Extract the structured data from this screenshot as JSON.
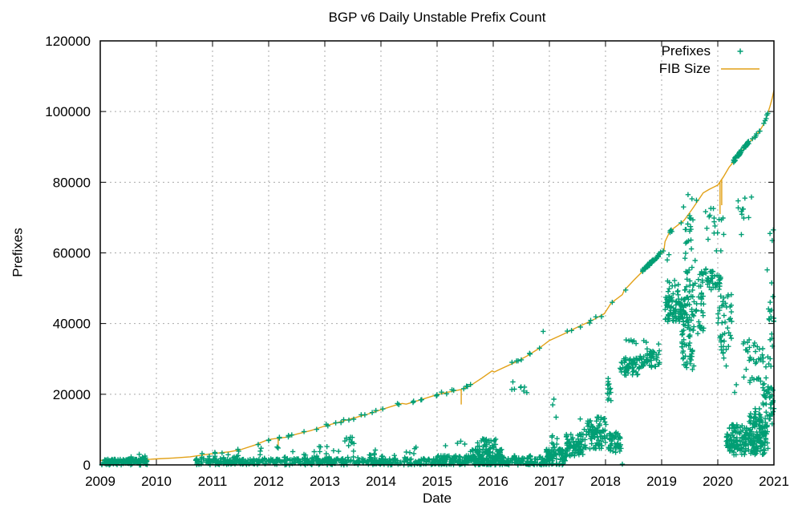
{
  "chart_data": {
    "type": "scatter",
    "title": "BGP v6 Daily Unstable Prefix Count",
    "xlabel": "Date",
    "ylabel": "Prefixes",
    "xlim": [
      2009,
      2021
    ],
    "ylim": [
      0,
      120000
    ],
    "xticks": [
      2009,
      2010,
      2011,
      2012,
      2013,
      2014,
      2015,
      2016,
      2017,
      2018,
      2019,
      2020,
      2021
    ],
    "yticks": [
      0,
      20000,
      40000,
      60000,
      80000,
      100000,
      120000
    ],
    "grid": true,
    "legend_position": "top-right-inside",
    "legend": [
      {
        "label": "Prefixes",
        "marker": "plus",
        "color": "#019E74"
      },
      {
        "label": "FIB Size",
        "marker": "line",
        "color": "#E2A117"
      }
    ],
    "colors": {
      "prefixes_points": "#019E74",
      "fib_line": "#E2A117",
      "grid": "#A9A9A9",
      "border": "#000000",
      "text": "#000000",
      "background": "#FFFFFF"
    },
    "fib_line": [
      [
        2009.0,
        1300
      ],
      [
        2009.3,
        1350
      ],
      [
        2009.6,
        1500
      ],
      [
        2009.9,
        1600
      ],
      [
        2010.0,
        1700
      ],
      [
        2010.3,
        1950
      ],
      [
        2010.6,
        2300
      ],
      [
        2011.0,
        3200
      ],
      [
        2011.3,
        3700
      ],
      [
        2011.5,
        4300
      ],
      [
        2011.75,
        5600
      ],
      [
        2011.95,
        6900
      ],
      [
        2012.05,
        7300
      ],
      [
        2012.3,
        7800
      ],
      [
        2012.5,
        8700
      ],
      [
        2012.75,
        9700
      ],
      [
        2013.0,
        11000
      ],
      [
        2013.25,
        12100
      ],
      [
        2013.5,
        13200
      ],
      [
        2013.75,
        14300
      ],
      [
        2014.0,
        15600
      ],
      [
        2014.3,
        17100
      ],
      [
        2014.38,
        17400
      ],
      [
        2014.45,
        17200
      ],
      [
        2014.7,
        18400
      ],
      [
        2015.0,
        19900
      ],
      [
        2015.2,
        20600
      ],
      [
        2015.42,
        21300
      ],
      [
        2015.6,
        22500
      ],
      [
        2015.8,
        24600
      ],
      [
        2015.98,
        26600
      ],
      [
        2016.02,
        26300
      ],
      [
        2016.1,
        26900
      ],
      [
        2016.4,
        29100
      ],
      [
        2016.6,
        30800
      ],
      [
        2016.8,
        32800
      ],
      [
        2017.0,
        35200
      ],
      [
        2017.25,
        37000
      ],
      [
        2017.5,
        39000
      ],
      [
        2017.75,
        40800
      ],
      [
        2017.98,
        42800
      ],
      [
        2018.02,
        43800
      ],
      [
        2018.1,
        45800
      ],
      [
        2018.3,
        48200
      ],
      [
        2018.33,
        49300
      ],
      [
        2018.5,
        52200
      ],
      [
        2018.7,
        55400
      ],
      [
        2018.9,
        58300
      ],
      [
        2019.0,
        60000
      ],
      [
        2019.04,
        60600
      ],
      [
        2019.06,
        63200
      ],
      [
        2019.15,
        66200
      ],
      [
        2019.3,
        68000
      ],
      [
        2019.4,
        69200
      ],
      [
        2019.55,
        72500
      ],
      [
        2019.74,
        77000
      ],
      [
        2019.85,
        78000
      ],
      [
        2020.0,
        79200
      ],
      [
        2020.1,
        81500
      ],
      [
        2020.2,
        84200
      ],
      [
        2020.35,
        87200
      ],
      [
        2020.5,
        90200
      ],
      [
        2020.65,
        92800
      ],
      [
        2020.75,
        94600
      ],
      [
        2020.82,
        96500
      ],
      [
        2020.88,
        99000
      ],
      [
        2020.93,
        101500
      ],
      [
        2020.97,
        103800
      ],
      [
        2021.0,
        106000
      ]
    ],
    "fib_down_spikes": [
      [
        2012.17,
        7500,
        4600
      ],
      [
        2015.43,
        21300,
        17100
      ],
      [
        2020.04,
        80000,
        71000
      ],
      [
        2020.07,
        80700,
        73500
      ]
    ],
    "scatter_seed": 7,
    "scatter_points": [
      [
        2009.55,
        2300
      ],
      [
        2016.35,
        23500
      ],
      [
        2016.89,
        37800
      ],
      [
        2017.06,
        17000
      ],
      [
        2017.08,
        18600
      ],
      [
        2017.12,
        13500
      ],
      [
        2017.55,
        13000
      ],
      [
        2018.3,
        200
      ],
      [
        2018.12,
        46000
      ],
      [
        2018.36,
        49500
      ],
      [
        2011.85,
        3900
      ],
      [
        2012.9,
        5200
      ],
      [
        2013.9,
        4200
      ],
      [
        2014.6,
        4600
      ],
      [
        2019.1,
        58000
      ],
      [
        2019.13,
        59500
      ],
      [
        2019.39,
        73000
      ],
      [
        2019.47,
        76500
      ],
      [
        2019.5,
        70500
      ],
      [
        2019.54,
        75300
      ],
      [
        2019.62,
        74900
      ],
      [
        2020.1,
        33500
      ],
      [
        2020.15,
        28000
      ],
      [
        2020.3,
        20500
      ],
      [
        2020.33,
        22700
      ],
      [
        2020.42,
        65200
      ],
      [
        2020.55,
        70000
      ],
      [
        2020.6,
        75800
      ],
      [
        2020.88,
        55200
      ],
      [
        2020.93,
        65500
      ],
      [
        2020.96,
        51500
      ],
      [
        2020.97,
        63500
      ],
      [
        2020.99,
        66500
      ]
    ],
    "scatter_clusters": [
      [
        2009.02,
        2009.85,
        0,
        1600,
        140
      ],
      [
        2009.68,
        2009.82,
        1600,
        3000,
        8
      ],
      [
        2010.7,
        2015.0,
        0,
        1800,
        430
      ],
      [
        2010.75,
        2015.0,
        1800,
        3300,
        40
      ],
      [
        2011.0,
        2015.0,
        3300,
        5200,
        16
      ],
      [
        2013.33,
        2013.52,
        5200,
        7900,
        9
      ],
      [
        2015.0,
        2016.92,
        0,
        2600,
        300
      ],
      [
        2015.55,
        2016.2,
        2600,
        4500,
        45
      ],
      [
        2015.72,
        2016.05,
        4500,
        7800,
        26
      ],
      [
        2015.15,
        2015.5,
        4800,
        6800,
        4
      ],
      [
        2016.3,
        2016.62,
        19500,
        22500,
        7
      ],
      [
        2016.92,
        2017.3,
        0,
        4500,
        90
      ],
      [
        2017.04,
        2017.14,
        4500,
        9500,
        8
      ],
      [
        2017.3,
        2017.62,
        2500,
        9000,
        75
      ],
      [
        2017.62,
        2018.05,
        4500,
        12500,
        85
      ],
      [
        2017.85,
        2018.0,
        12500,
        13800,
        7
      ],
      [
        2018.05,
        2018.28,
        3500,
        9500,
        45
      ],
      [
        2018.0,
        2018.1,
        17800,
        24500,
        14
      ],
      [
        2018.26,
        2018.6,
        25300,
        30500,
        60
      ],
      [
        2018.6,
        2018.97,
        27500,
        32500,
        55
      ],
      [
        2018.3,
        2018.95,
        32500,
        35800,
        10
      ],
      [
        2019.06,
        2019.42,
        40500,
        47600,
        85
      ],
      [
        2019.1,
        2019.3,
        47600,
        52500,
        12
      ],
      [
        2019.36,
        2019.58,
        27000,
        46000,
        70
      ],
      [
        2019.4,
        2019.6,
        46000,
        60000,
        25
      ],
      [
        2019.42,
        2019.56,
        60000,
        70000,
        14
      ],
      [
        2019.6,
        2019.75,
        37000,
        49000,
        25
      ],
      [
        2019.65,
        2020.05,
        49500,
        55800,
        50
      ],
      [
        2019.78,
        2020.12,
        60000,
        74000,
        18
      ],
      [
        2020.0,
        2020.25,
        35000,
        50500,
        35
      ],
      [
        2020.05,
        2020.2,
        30000,
        35000,
        8
      ],
      [
        2020.35,
        2020.5,
        68000,
        76000,
        8
      ],
      [
        2020.15,
        2020.9,
        4500,
        11500,
        190
      ],
      [
        2020.2,
        2020.85,
        2800,
        4500,
        30
      ],
      [
        2020.55,
        2021.0,
        11500,
        16000,
        40
      ],
      [
        2020.8,
        2021.0,
        16000,
        23000,
        30
      ],
      [
        2020.45,
        2021.0,
        23000,
        36500,
        45
      ],
      [
        2020.9,
        2021.0,
        36500,
        48000,
        12
      ]
    ],
    "scatter_on_fib_clusters": [
      [
        2011.0,
        2015.05,
        34,
        350,
        0
      ],
      [
        2015.05,
        2015.65,
        8,
        500,
        0
      ],
      [
        2016.3,
        2016.95,
        7,
        450,
        0
      ],
      [
        2017.1,
        2017.95,
        7,
        450,
        0
      ],
      [
        2018.66,
        2018.98,
        48,
        450,
        300
      ],
      [
        2019.0,
        2019.35,
        6,
        500,
        0
      ],
      [
        2020.28,
        2020.55,
        42,
        450,
        200
      ],
      [
        2020.6,
        2020.75,
        6,
        400,
        0
      ],
      [
        2020.82,
        2020.92,
        5,
        400,
        0
      ]
    ]
  }
}
